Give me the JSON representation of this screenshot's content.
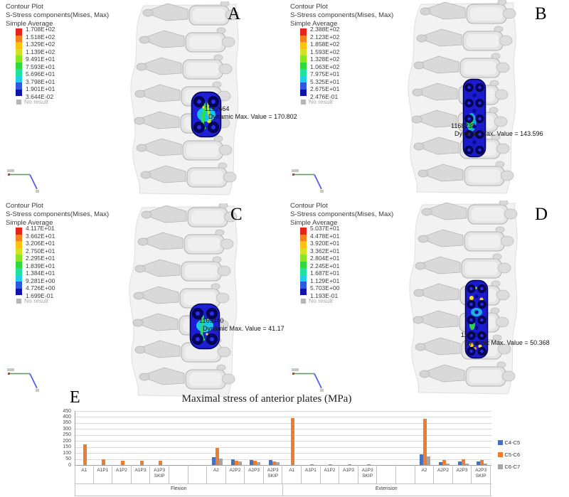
{
  "shared": {
    "header": [
      "Contour Plot",
      "S-Stress components(Mises, Max)",
      "Simple Average"
    ],
    "no_result": "No result",
    "legend_colors": [
      "#e8231c",
      "#f87f1d",
      "#ffc20e",
      "#d7e021",
      "#8ce51e",
      "#2fd93c",
      "#1fe3a1",
      "#1fcfe8",
      "#2b59e0",
      "#1111ad"
    ]
  },
  "views": [
    {
      "letter": "A",
      "legend_values": [
        "1.708E+02",
        "1.518E+02",
        "1.329E+02",
        "1.139E+02",
        "9.491E+01",
        "7.593E+01",
        "5.696E+01",
        "3.798E+01",
        "1.901E+01",
        "3.644E-02"
      ],
      "node": "1152664",
      "value_text": "Dynamic Max. Value =  170.802"
    },
    {
      "letter": "B",
      "legend_values": [
        "2.388E+02",
        "2.123E+02",
        "1.858E+02",
        "1.593E+02",
        "1.328E+02",
        "1.063E+02",
        "7.975E+01",
        "5.325E+01",
        "2.675E+01",
        "2.476E-01"
      ],
      "node": "1168232",
      "value_text": "Dynamic Max. Value =  143.596"
    },
    {
      "letter": "C",
      "legend_values": [
        "4.117E+01",
        "3.662E+01",
        "3.206E+01",
        "2.750E+01",
        "2.295E+01",
        "1.839E+01",
        "1.384E+01",
        "9.281E+00",
        "4.726E+00",
        "1.699E-01"
      ],
      "node": "1163340",
      "value_text": "Dynamic Max. Value =  41.17"
    },
    {
      "letter": "D",
      "legend_values": [
        "5.037E+01",
        "4.478E+01",
        "3.920E+01",
        "3.362E+01",
        "2.804E+01",
        "2.245E+01",
        "1.687E+01",
        "1.129E+01",
        "5.703E+00",
        "1.193E-01"
      ],
      "node": "1151017",
      "value_text": "Dynamic Max. Value =  50.368"
    }
  ],
  "chart_data": {
    "type": "bar",
    "panel_letter": "E",
    "title": "Maximal stress of anterior plates (MPa)",
    "xlabel": "",
    "ylabel": "",
    "ylim": [
      0,
      450
    ],
    "y_tick_step": 50,
    "grid": true,
    "legend_position": "right",
    "groups": [
      "Flexion",
      "Extension"
    ],
    "series": [
      {
        "name": "C4-C5",
        "color": "#4472c4"
      },
      {
        "name": "C5-C6",
        "color": "#ed7d31"
      },
      {
        "name": "C6-C7",
        "color": "#a5a5a5"
      }
    ],
    "slots": [
      {
        "group": "Flexion",
        "label": "A1",
        "values": [
          null,
          170,
          null
        ]
      },
      {
        "group": "Flexion",
        "label": "A1P1",
        "values": [
          null,
          47,
          null
        ]
      },
      {
        "group": "Flexion",
        "label": "A1P2",
        "values": [
          null,
          37,
          null
        ]
      },
      {
        "group": "Flexion",
        "label": "A1P3",
        "values": [
          null,
          35,
          null
        ]
      },
      {
        "group": "Flexion",
        "label": "A1P3 SKIP",
        "values": [
          null,
          37,
          null
        ]
      },
      {
        "group": "Flexion",
        "label": "",
        "values": [
          null,
          null,
          null
        ]
      },
      {
        "group": "Flexion",
        "label": "",
        "values": [
          null,
          null,
          null
        ]
      },
      {
        "group": "Flexion",
        "label": "A2",
        "values": [
          68,
          144,
          53
        ]
      },
      {
        "group": "Flexion",
        "label": "A2P2",
        "values": [
          45,
          33,
          27
        ]
      },
      {
        "group": "Flexion",
        "label": "A2P3",
        "values": [
          42,
          36,
          24
        ]
      },
      {
        "group": "Flexion",
        "label": "A2P3 SKIP",
        "values": [
          44,
          32,
          24
        ]
      },
      {
        "group": "Extension",
        "label": "A1",
        "values": [
          null,
          390,
          null
        ]
      },
      {
        "group": "Extension",
        "label": "A1P1",
        "values": [
          null,
          5,
          null
        ]
      },
      {
        "group": "Extension",
        "label": "A1P2",
        "values": [
          null,
          7,
          null
        ]
      },
      {
        "group": "Extension",
        "label": "A1P3",
        "values": [
          null,
          8,
          null
        ]
      },
      {
        "group": "Extension",
        "label": "A1P3 SKIP",
        "values": [
          null,
          8,
          null
        ]
      },
      {
        "group": "Extension",
        "label": "",
        "values": [
          null,
          null,
          null
        ]
      },
      {
        "group": "Extension",
        "label": "",
        "values": [
          null,
          null,
          null
        ]
      },
      {
        "group": "Extension",
        "label": "A2",
        "values": [
          88,
          385,
          72
        ]
      },
      {
        "group": "Extension",
        "label": "A2P2",
        "values": [
          25,
          42,
          10
        ]
      },
      {
        "group": "Extension",
        "label": "A2P3",
        "values": [
          30,
          47,
          13
        ]
      },
      {
        "group": "Extension",
        "label": "A2P3 SKIP",
        "values": [
          31,
          44,
          12
        ]
      }
    ]
  }
}
